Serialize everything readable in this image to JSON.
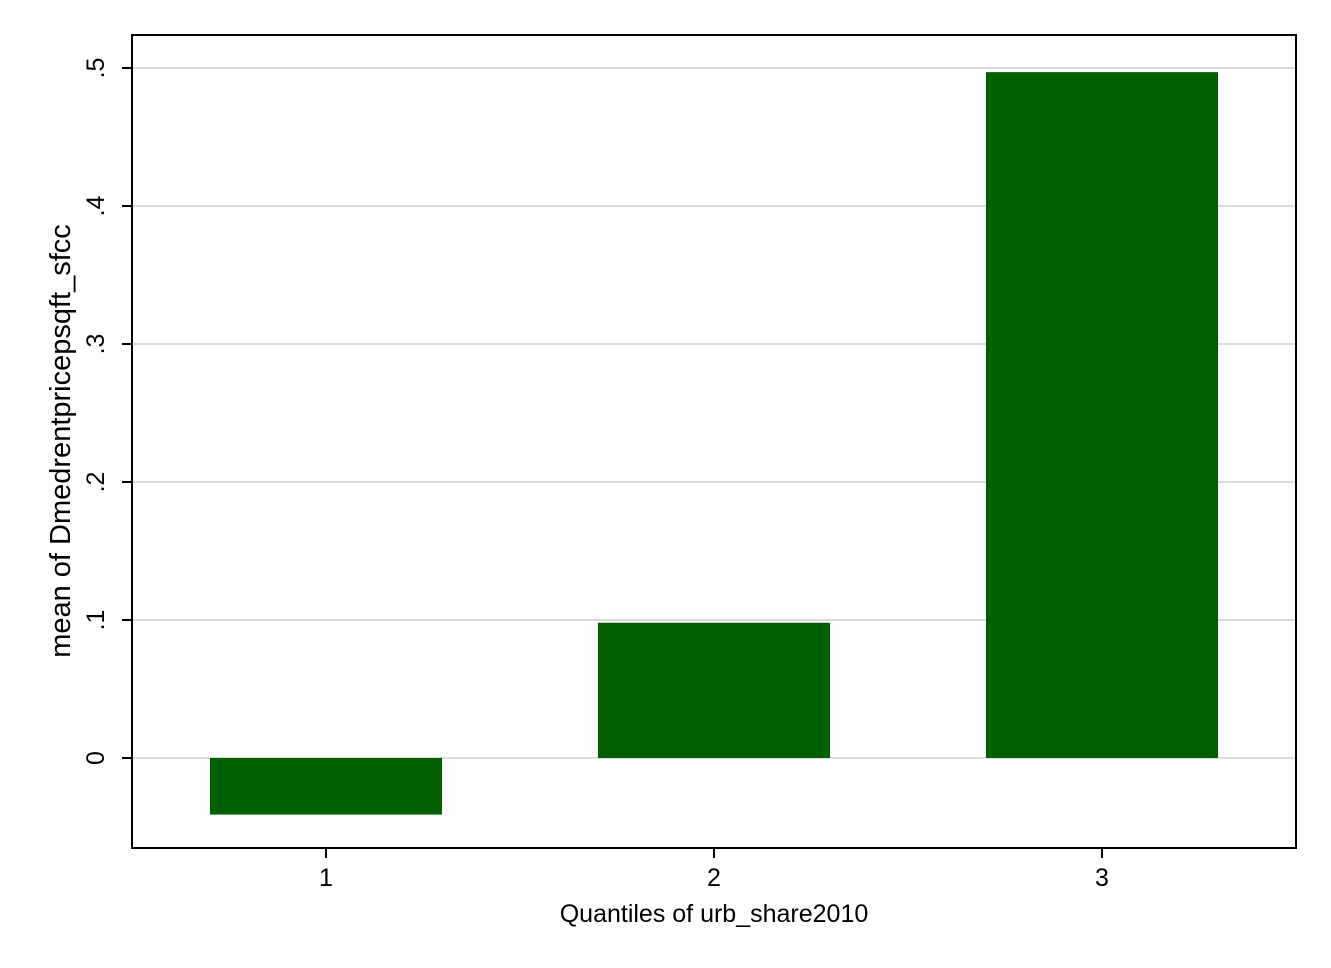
{
  "chart_data": {
    "type": "bar",
    "categories": [
      "1",
      "2",
      "3"
    ],
    "values": [
      -0.041,
      0.098,
      0.497
    ],
    "xlabel": "Quantiles of urb_share2010",
    "ylabel": "mean of Dmedrentpricepsqft_sfcc",
    "ylim": [
      -0.065,
      0.52
    ],
    "yticks": [
      0,
      0.1,
      0.2,
      0.3,
      0.4,
      0.5
    ],
    "ytick_labels": [
      "0",
      ".1",
      ".2",
      ".3",
      ".4",
      ".5"
    ],
    "grid": true,
    "legend": "none",
    "bar_color": "#006000"
  }
}
